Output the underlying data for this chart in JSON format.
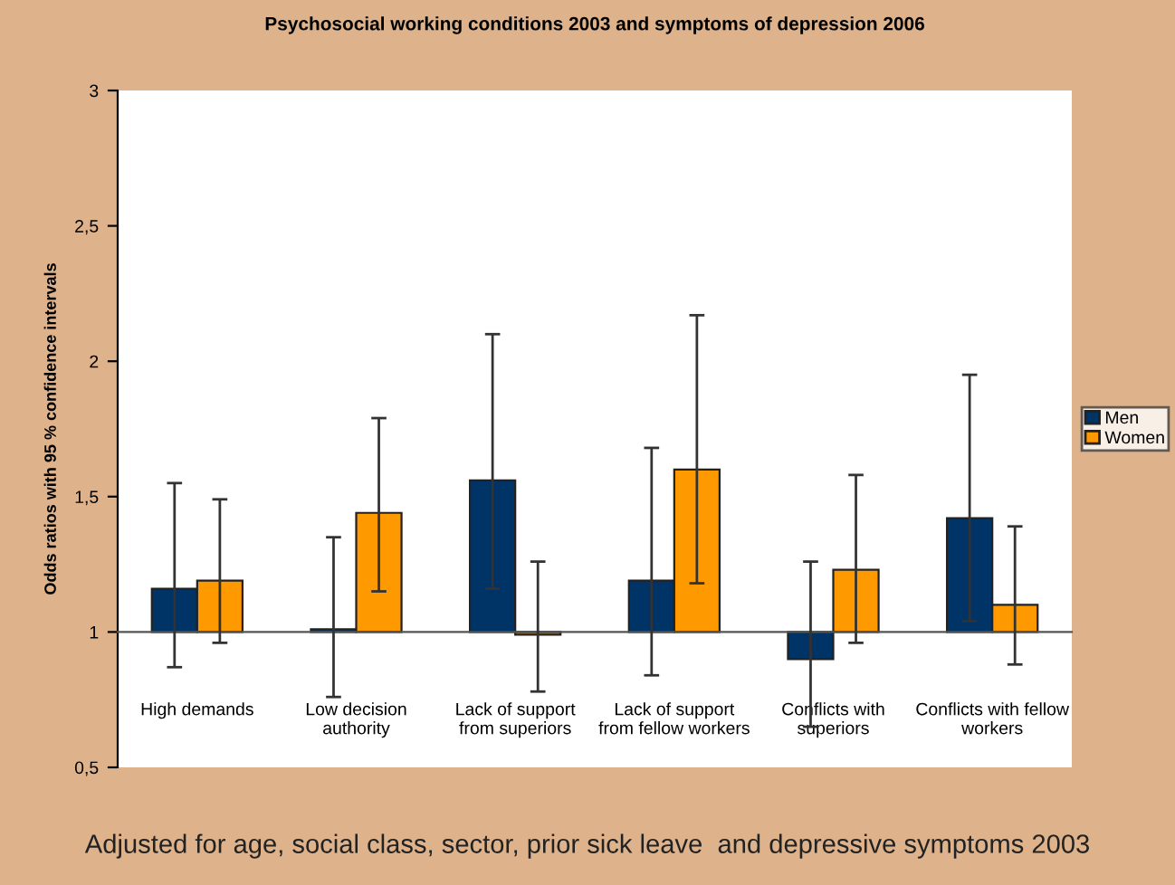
{
  "chart_data": {
    "type": "bar",
    "title": "Psychosocial working conditions 2003 and symptoms of depression 2006",
    "ylabel": "Odds ratios with 95 % confidence intervals",
    "categories": [
      "High demands",
      "Low decision\nauthority",
      "Lack of support\nfrom superiors",
      "Lack of support\nfrom fellow workers",
      "Conflicts with\nsuperiors",
      "Conflicts with fellow\nworkers"
    ],
    "series": [
      {
        "name": "Men",
        "color": "#003366",
        "base": [
          1,
          1,
          1,
          1,
          1,
          1
        ],
        "values": [
          0.16,
          0.01,
          0.56,
          0.19,
          -0.1,
          0.42
        ],
        "errors": [
          [
            0.87,
            1.55
          ],
          [
            0.76,
            1.35
          ],
          [
            1.16,
            2.1
          ],
          [
            0.84,
            1.68
          ],
          [
            0.65,
            1.26
          ],
          [
            1.04,
            1.95
          ]
        ]
      },
      {
        "name": "Women",
        "color": "#ff9900",
        "base": [
          1,
          1,
          1,
          1,
          1,
          1
        ],
        "values": [
          0.19,
          0.44,
          -0.01,
          0.6,
          0.23,
          0.1
        ],
        "errors": [
          [
            0.96,
            1.49
          ],
          [
            1.15,
            1.79
          ],
          [
            0.78,
            1.26
          ],
          [
            1.18,
            2.17
          ],
          [
            0.96,
            1.58
          ],
          [
            0.88,
            1.39
          ]
        ]
      }
    ],
    "ylim": [
      0.5,
      3
    ],
    "yticks": [
      {
        "value": 0.5,
        "label": "0,5"
      },
      {
        "value": 1,
        "label": "1"
      },
      {
        "value": 1.5,
        "label": "1,5"
      },
      {
        "value": 2,
        "label": "2"
      },
      {
        "value": 2.5,
        "label": "2,5"
      },
      {
        "value": 3,
        "label": "3"
      }
    ],
    "legend": "right",
    "annotations": [
      "Adjusted for age, social class, sector, prior sick leave  and depressive symptoms 2003"
    ]
  }
}
